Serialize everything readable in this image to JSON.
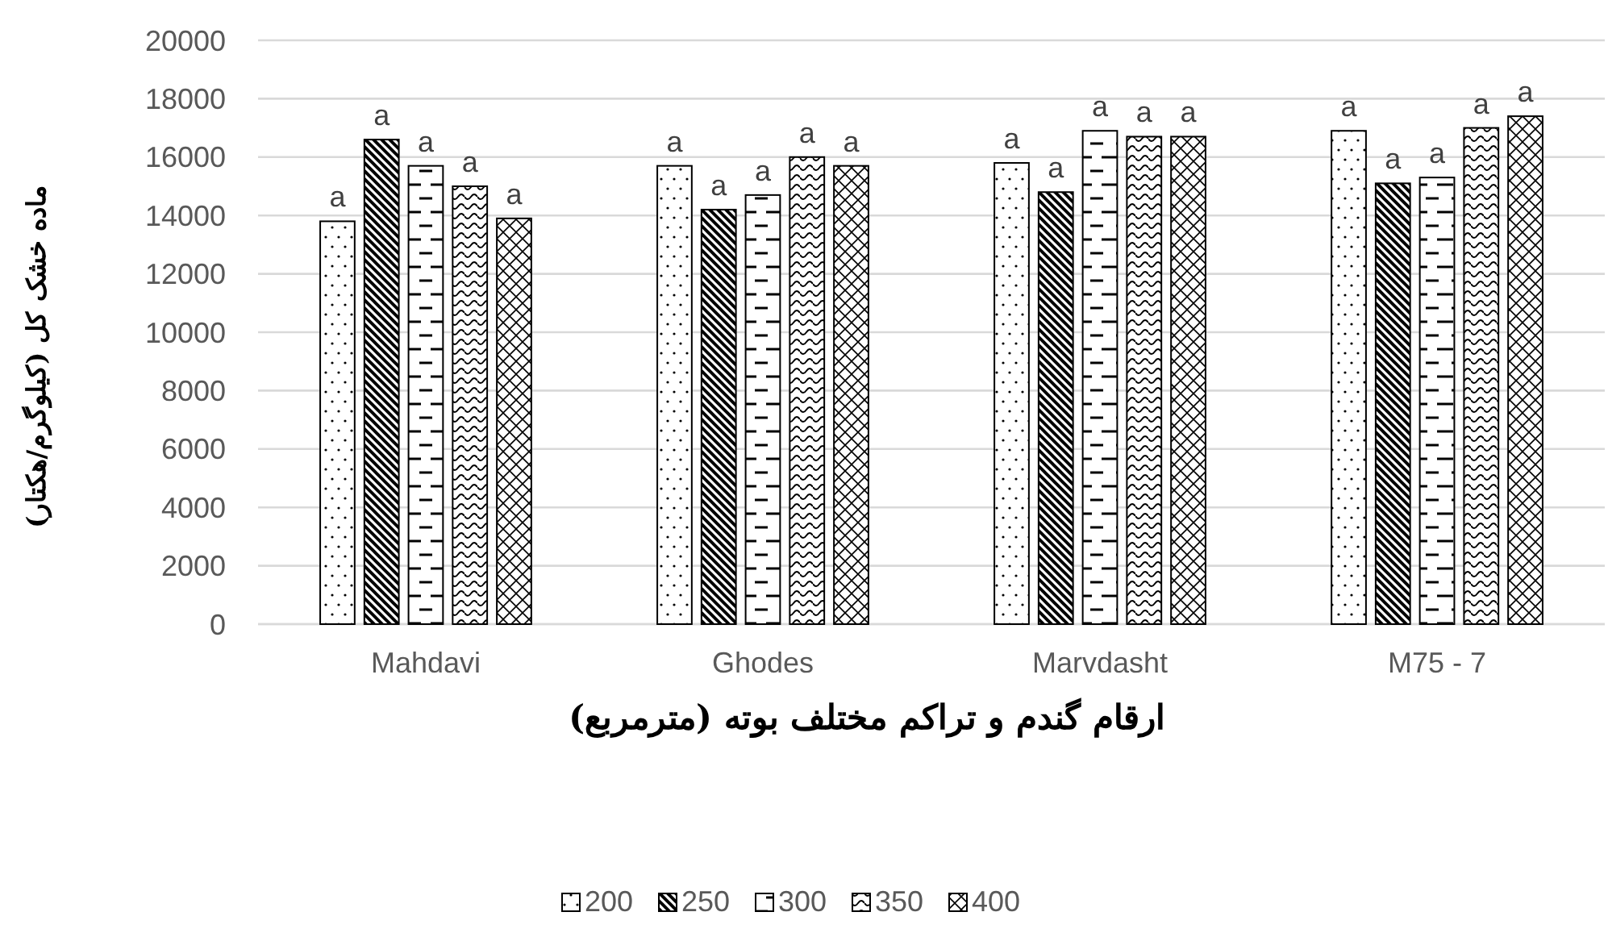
{
  "chart_data": {
    "type": "bar",
    "xlabel": "ارقام گندم و تراکم مختلف بوته (مترمربع)",
    "ylabel": "ماده خشک کل (کیلوگرم/هکتار)",
    "categories": [
      "Mahdavi",
      "Ghodes",
      "Marvdasht",
      "M75 - 7"
    ],
    "series": [
      {
        "name": "200",
        "color": "#000000",
        "values": [
          13800,
          15700,
          15800,
          16900
        ],
        "value_labels": [
          "a",
          "a",
          "a",
          "a"
        ]
      },
      {
        "name": "250",
        "color": "#000000",
        "values": [
          16600,
          14200,
          14800,
          15100
        ],
        "value_labels": [
          "a",
          "a",
          "a",
          "a"
        ]
      },
      {
        "name": "300",
        "color": "#000000",
        "values": [
          15700,
          14700,
          16900,
          15300
        ],
        "value_labels": [
          "a",
          "a",
          "a",
          "a"
        ]
      },
      {
        "name": "350",
        "color": "#000000",
        "values": [
          15000,
          16000,
          16700,
          17000
        ],
        "value_labels": [
          "a",
          "a",
          "a",
          "a"
        ]
      },
      {
        "name": "400",
        "color": "#000000",
        "values": [
          13900,
          15700,
          16700,
          17400
        ],
        "value_labels": [
          "a",
          "a",
          "a",
          "a"
        ]
      }
    ],
    "ylim": [
      0,
      20000
    ],
    "yticks": [
      0,
      2000,
      4000,
      6000,
      8000,
      10000,
      12000,
      14000,
      16000,
      18000,
      20000
    ],
    "grid": "y",
    "legend": "bottom"
  }
}
